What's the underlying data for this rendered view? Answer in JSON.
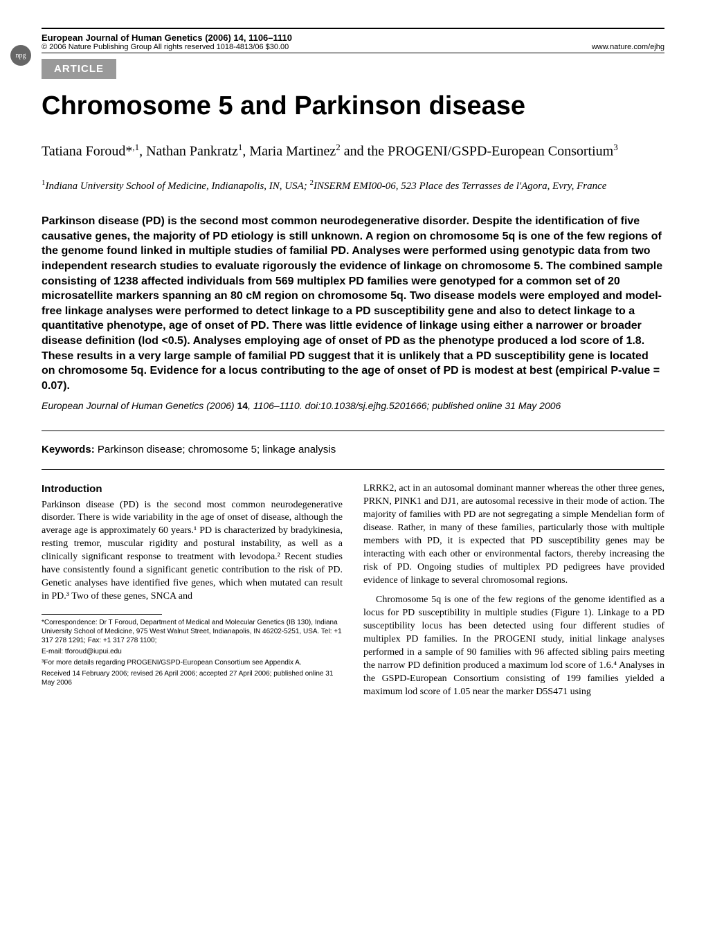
{
  "journal": {
    "title_line": "European Journal of Human Genetics (2006) 14, 1106–1110",
    "copyright_line": "© 2006 Nature Publishing Group  All rights reserved 1018-4813/06 $30.00",
    "url": "www.nature.com/ejhg",
    "npg": "npg"
  },
  "badge": "ARTICLE",
  "title": "Chromosome 5 and Parkinson disease",
  "authors_html": "Tatiana Foroud*,¹, Nathan Pankratz¹, Maria Martinez² and the PROGENI/GSPD-European Consortium³",
  "affiliations_html": "¹Indiana University School of Medicine, Indianapolis, IN, USA; ²INSERM EMI00-06, 523 Place des Terrasses de l'Agora, Evry, France",
  "abstract": "Parkinson disease (PD) is the second most common neurodegenerative disorder. Despite the identification of five causative genes, the majority of PD etiology is still unknown. A region on chromosome 5q is one of the few regions of the genome found linked in multiple studies of familial PD. Analyses were performed using genotypic data from two independent research studies to evaluate rigorously the evidence of linkage on chromosome 5. The combined sample consisting of 1238 affected individuals from 569 multiplex PD families were genotyped for a common set of 20 microsatellite markers spanning an 80 cM region on chromosome 5q. Two disease models were employed and model-free linkage analyses were performed to detect linkage to a PD susceptibility gene and also to detect linkage to a quantitative phenotype, age of onset of PD. There was little evidence of linkage using either a narrower or broader disease definition (lod <0.5). Analyses employing age of onset of PD as the phenotype produced a lod score of 1.8. These results in a very large sample of familial PD suggest that it is unlikely that a PD susceptibility gene is located on chromosome 5q. Evidence for a locus contributing to the age of onset of PD is modest at best (empirical P-value = 0.07).",
  "citation": {
    "journal": "European Journal of Human Genetics",
    "rest": " (2006) ",
    "vol": "14",
    "pages": ", 1106–1110. doi:10.1038/sj.ejhg.5201666; published online 31 May 2006"
  },
  "keywords": {
    "label": "Keywords:",
    "text": " Parkinson disease; chromosome 5; linkage analysis"
  },
  "intro_head": "Introduction",
  "col1_text": "Parkinson disease (PD) is the second most common neurodegenerative disorder. There is wide variability in the age of onset of disease, although the average age is approximately 60 years.¹ PD is characterized by bradykinesia, resting tremor, muscular rigidity and postural instability, as well as a clinically significant response to treatment with levodopa.² Recent studies have consistently found a significant genetic contribution to the risk of PD. Genetic analyses have identified five genes, which when mutated can result in PD.³ Two of these genes, SNCA and",
  "col2_para1": "LRRK2, act in an autosomal dominant manner whereas the other three genes, PRKN, PINK1 and DJ1, are autosomal recessive in their mode of action. The majority of families with PD are not segregating a simple Mendelian form of disease. Rather, in many of these families, particularly those with multiple members with PD, it is expected that PD susceptibility genes may be interacting with each other or environmental factors, thereby increasing the risk of PD. Ongoing studies of multiplex PD pedigrees have provided evidence of linkage to several chromosomal regions.",
  "col2_para2": "Chromosome 5q is one of the few regions of the genome identified as a locus for PD susceptibility in multiple studies (Figure 1). Linkage to a PD susceptibility locus has been detected using four different studies of multiplex PD families. In the PROGENI study, initial linkage analyses performed in a sample of 90 families with 96 affected sibling pairs meeting the narrow PD definition produced a maximum lod score of 1.6.⁴ Analyses in the GSPD-European Consortium consisting of 199 families yielded a maximum lod score of 1.05 near the marker D5S471 using",
  "footnotes": {
    "correspondence": "*Correspondence: Dr T Foroud, Department of Medical and Molecular Genetics (IB 130), Indiana University School of Medicine, 975 West Walnut Street, Indianapolis, IN 46202-5251, USA. Tel: +1 317 278 1291; Fax: +1 317 278 1100;",
    "email": "E-mail: tforoud@iupui.edu",
    "note3": "³For more details regarding PROGENI/GSPD-European Consortium see Appendix A.",
    "received": "Received 14 February 2006; revised 26 April 2006; accepted 27 April 2006; published online 31 May 2006"
  },
  "colors": {
    "badge_bg": "#999999",
    "badge_fg": "#ffffff",
    "text": "#000000",
    "bg": "#ffffff"
  },
  "typography": {
    "title_fontsize": 38,
    "authors_fontsize": 20,
    "abstract_fontsize": 16,
    "body_fontsize": 14,
    "footnote_fontsize": 10
  }
}
